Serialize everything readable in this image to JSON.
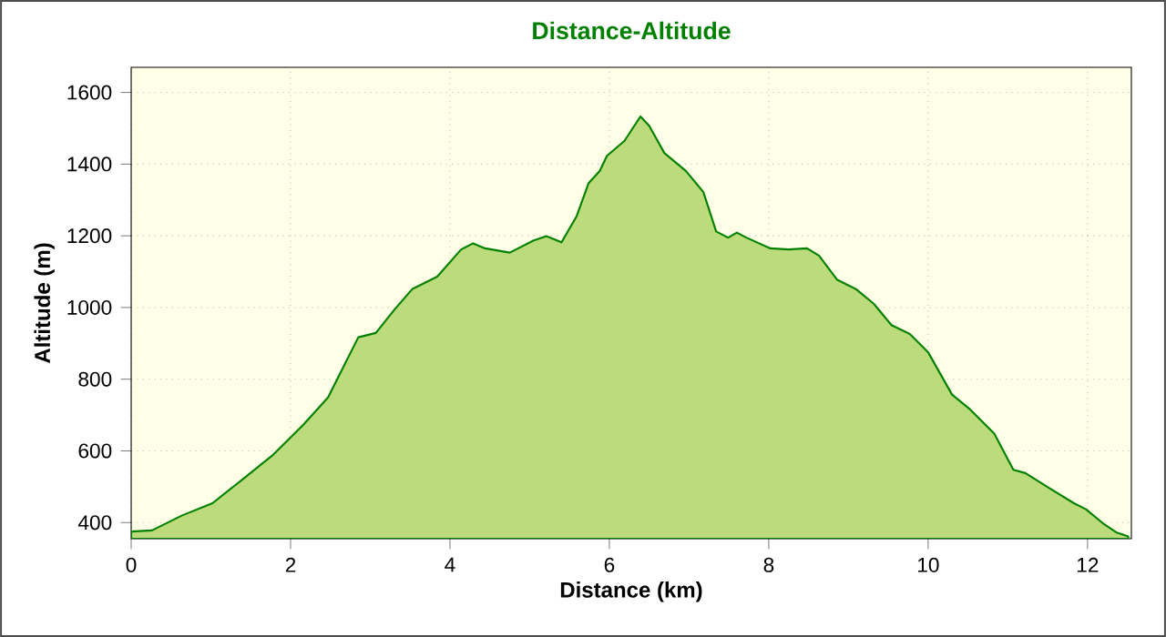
{
  "chart_data": {
    "type": "area",
    "title": "Distance-Altitude",
    "xlabel": "Distance (km)",
    "ylabel": "Altitude (m)",
    "xlim": [
      0,
      12.55
    ],
    "ylim": [
      355,
      1670
    ],
    "xticks": [
      0,
      2,
      4,
      6,
      8,
      10,
      12
    ],
    "yticks": [
      400,
      600,
      800,
      1000,
      1200,
      1400,
      1600
    ],
    "grid": true,
    "series": [
      {
        "color": "#bcdc7c",
        "x": [
          0,
          0.26,
          0.64,
          1.02,
          1.4,
          1.78,
          2.16,
          2.47,
          2.85,
          3.07,
          3.3,
          3.53,
          3.84,
          4.14,
          4.29,
          4.44,
          4.75,
          5.05,
          5.21,
          5.4,
          5.59,
          5.74,
          5.88,
          5.97,
          6.19,
          6.39,
          6.5,
          6.69,
          6.96,
          7.18,
          7.34,
          7.49,
          7.6,
          7.72,
          8.02,
          8.25,
          8.48,
          8.63,
          8.86,
          9.09,
          9.32,
          9.54,
          9.77,
          10.0,
          10.3,
          10.53,
          10.83,
          11.07,
          11.22,
          11.52,
          11.83,
          11.98,
          12.21,
          12.36,
          12.51
        ],
        "values": [
          375,
          378,
          420,
          454,
          521,
          589,
          673,
          749,
          917,
          929,
          993,
          1052,
          1086,
          1162,
          1179,
          1165,
          1153,
          1187,
          1199,
          1182,
          1255,
          1347,
          1381,
          1423,
          1465,
          1533,
          1507,
          1431,
          1381,
          1322,
          1212,
          1195,
          1209,
          1195,
          1165,
          1162,
          1165,
          1145,
          1077,
          1052,
          1010,
          951,
          926,
          875,
          757,
          715,
          648,
          547,
          538,
          496,
          454,
          437,
          395,
          373,
          361
        ]
      }
    ]
  }
}
